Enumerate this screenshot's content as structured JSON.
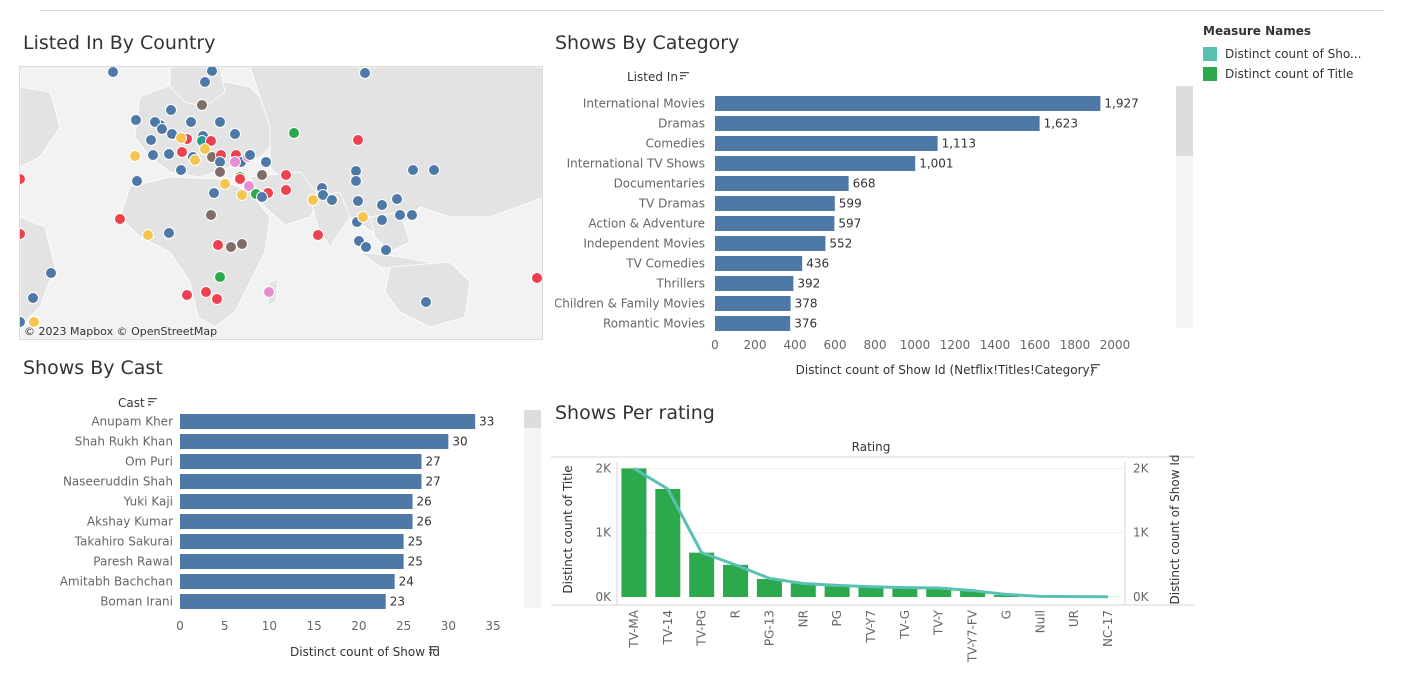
{
  "colors": {
    "bar": "#4e79a7",
    "teal": "#59c1b2",
    "green": "#2ca84d",
    "red": "#ee4150",
    "yellow": "#f4c54f",
    "brown": "#7f6e68",
    "pink": "#e58fd0",
    "darkteal": "#2a9d8f"
  },
  "titles": {
    "country": "Listed In By Country",
    "category": "Shows By Category",
    "cast": "Shows By Cast",
    "rating": "Shows Per rating"
  },
  "legend": {
    "title": "Measure Names",
    "items": [
      {
        "label": "Distinct count of Sho...",
        "color": "#59c1b2"
      },
      {
        "label": "Distinct count of Title",
        "color": "#2ca84d"
      }
    ]
  },
  "map": {
    "credit": "© 2023 Mapbox  © OpenStreetMap"
  },
  "chart_data": [
    {
      "type": "bar",
      "title": "Shows By Category",
      "orientation": "horizontal",
      "ylabel": "Listed In",
      "xlabel": "Distinct count of Show Id (Netflix!Titles!Category)",
      "categories": [
        "International Movies",
        "Dramas",
        "Comedies",
        "International TV Shows",
        "Documentaries",
        "TV Dramas",
        "Action & Adventure",
        "Independent Movies",
        "TV Comedies",
        "Thrillers",
        "Children & Family Movies",
        "Romantic Movies"
      ],
      "values": [
        1927,
        1623,
        1113,
        1001,
        668,
        599,
        597,
        552,
        436,
        392,
        378,
        376
      ],
      "labels": [
        "1,927",
        "1,623",
        "1,113",
        "1,001",
        "668",
        "599",
        "597",
        "552",
        "436",
        "392",
        "378",
        "376"
      ],
      "xticks": [
        0,
        200,
        400,
        600,
        800,
        1000,
        1200,
        1400,
        1600,
        1800,
        2000
      ],
      "xlim": [
        0,
        2100
      ]
    },
    {
      "type": "bar",
      "title": "Shows By Cast",
      "orientation": "horizontal",
      "ylabel": "Cast",
      "xlabel": "Distinct count of Show Id",
      "categories": [
        "Anupam Kher",
        "Shah Rukh Khan",
        "Om Puri",
        "Naseeruddin Shah",
        "Yuki Kaji",
        "Akshay Kumar",
        "Takahiro Sakurai",
        "Paresh Rawal",
        "Amitabh Bachchan",
        "Boman Irani"
      ],
      "values": [
        33,
        30,
        27,
        27,
        26,
        26,
        25,
        25,
        24,
        23
      ],
      "xticks": [
        0,
        5,
        10,
        15,
        20,
        25,
        30,
        35
      ],
      "xlim": [
        0,
        36
      ]
    },
    {
      "type": "bar",
      "title": "Shows Per rating",
      "header": "Rating",
      "ylabel": "Distinct count of Title",
      "y2label": "Distinct count of Show Id",
      "categories": [
        "TV-MA",
        "TV-14",
        "TV-PG",
        "R",
        "PG-13",
        "NR",
        "PG",
        "TV-Y7",
        "TV-G",
        "TV-Y",
        "TV-Y7-FV",
        "G",
        "Null",
        "UR",
        "NC-17"
      ],
      "series": [
        {
          "name": "Distinct count of Title",
          "kind": "bar",
          "values": [
            2000,
            1680,
            690,
            500,
            280,
            210,
            170,
            160,
            150,
            140,
            95,
            30,
            5,
            5,
            3
          ]
        },
        {
          "name": "Distinct count of Show Id",
          "kind": "line",
          "values": [
            2000,
            1680,
            690,
            500,
            290,
            210,
            180,
            160,
            145,
            140,
            100,
            40,
            10,
            5,
            3
          ]
        }
      ],
      "yticks": [
        "0K",
        "1K",
        "2K"
      ],
      "ylim": [
        0,
        2100
      ]
    }
  ]
}
